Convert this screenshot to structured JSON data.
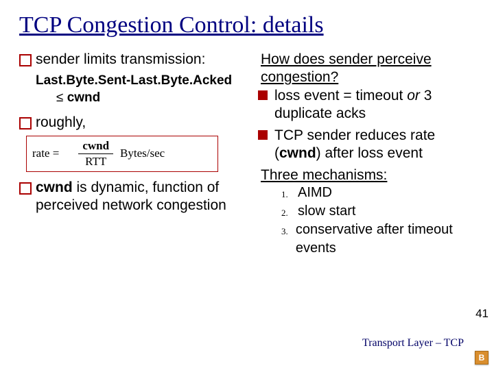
{
  "title": "TCP Congestion Control: details",
  "left": {
    "b1": "sender limits transmission:",
    "code1": "Last.Byte.Sent-Last.Byte.Acked",
    "code2_sym": "≤",
    "code2_var": " cwnd",
    "b2": "roughly,",
    "rate_lhs": "rate =",
    "rate_top": "cwnd",
    "rate_bot": "RTT",
    "rate_unit": "Bytes/sec",
    "b3_strong": "cwnd",
    "b3_rest": " is dynamic, function of perceived network congestion"
  },
  "right": {
    "q1": "How does  sender perceive congestion?",
    "b1_a": "loss event = timeout ",
    "b1_or": "or ",
    "b1_b": "3 duplicate acks",
    "b2_a": "TCP sender reduces rate (",
    "b2_cwnd": "cwnd",
    "b2_b": ") after loss event",
    "mech": "Three mechanisms:",
    "ol": [
      {
        "n": "1.",
        "t": "AIMD"
      },
      {
        "n": "2.",
        "t": "slow start"
      },
      {
        "n": "3.",
        "t": "conservative after timeout events"
      }
    ]
  },
  "pagenum": "41",
  "footer": "Transport Layer – TCP",
  "badge": "B"
}
